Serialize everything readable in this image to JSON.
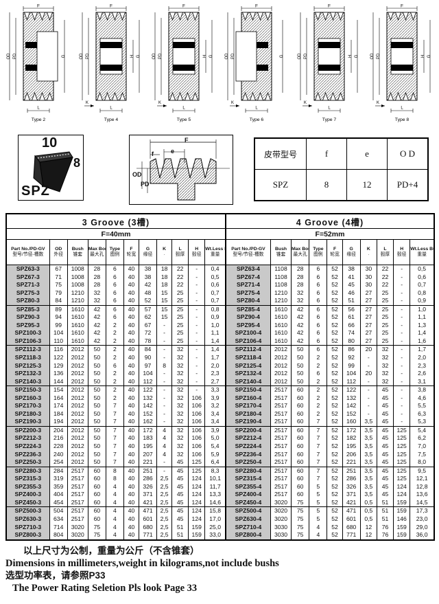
{
  "drawings": [
    {
      "caption": "Type 2",
      "top_dim": "F",
      "left_dims": [
        "OD",
        "PD"
      ],
      "right_dims": [
        "G"
      ],
      "bottom_dims": [
        "L"
      ],
      "hub": "right"
    },
    {
      "caption": "Type 4",
      "top_dim": "F",
      "left_dims": [
        "OD",
        "PD"
      ],
      "right_dims": [
        "H",
        "G"
      ],
      "bottom_dims": [
        "K",
        "L"
      ],
      "hub": "center"
    },
    {
      "caption": "Type 5",
      "top_dim": "F",
      "left_dims": [
        "OD",
        "PD"
      ],
      "right_dims": [
        "H",
        "G"
      ],
      "bottom_dims": [
        "K",
        "L"
      ],
      "hub": "center"
    },
    {
      "caption": "Type 6",
      "top_dim": "F",
      "left_dims": [
        "OD",
        "PD"
      ],
      "right_dims": [
        "G"
      ],
      "bottom_dims": [
        "K",
        "L"
      ],
      "hub": "left"
    },
    {
      "caption": "Type 7",
      "top_dim": "F",
      "left_dims": [
        "OD",
        "PD"
      ],
      "right_dims": [
        "H",
        "G"
      ],
      "bottom_dims": [
        "K",
        "L"
      ],
      "hub": "center"
    },
    {
      "caption": "Type 8",
      "top_dim": "F",
      "left_dims": [
        "OD",
        "PD"
      ],
      "right_dims": [
        "H",
        "G"
      ],
      "bottom_dims": [
        "K",
        "L"
      ],
      "hub": "center"
    }
  ],
  "belt_profile": {
    "top_width": "10",
    "height": "8",
    "name": "SPZ"
  },
  "groove_diagram": {
    "F": "F",
    "f": "f",
    "e": "e",
    "OD": "OD",
    "PD": "PD"
  },
  "spec_table": {
    "headers": [
      "皮带型号",
      "f",
      "e",
      "O D"
    ],
    "row": [
      "SPZ",
      "8",
      "12",
      "PD+4"
    ]
  },
  "main_table": {
    "group_breaks": [
      4,
      9,
      14,
      19,
      24,
      29
    ],
    "left": {
      "title": "3 Groove (3槽)",
      "subtitle": "F=40mm",
      "columns": [
        [
          "Part No./PD-GV",
          "型号/节径-槽数"
        ],
        [
          "OD",
          "外径"
        ],
        [
          "Bush",
          "锥套"
        ],
        [
          "Max Bore",
          "最大孔"
        ],
        [
          "Type",
          "图例"
        ],
        [
          "F",
          "轮宽"
        ],
        [
          "G",
          "缘径"
        ],
        [
          "K",
          "·"
        ],
        [
          "L",
          "毂厚"
        ],
        [
          "H",
          "毂径"
        ],
        [
          "Wt.Less Bush",
          "重量"
        ]
      ],
      "rows": [
        [
          "SPZ63-3",
          "67",
          "1008",
          "28",
          "6",
          "40",
          "38",
          "18",
          "22",
          "-",
          "0,4"
        ],
        [
          "SPZ67-3",
          "71",
          "1008",
          "28",
          "6",
          "40",
          "38",
          "18",
          "22",
          "-",
          "0,5"
        ],
        [
          "SPZ71-3",
          "75",
          "1008",
          "28",
          "6",
          "40",
          "42",
          "18",
          "22",
          "-",
          "0,6"
        ],
        [
          "SPZ75-3",
          "79",
          "1210",
          "32",
          "6",
          "40",
          "48",
          "15",
          "25",
          "-",
          "0,7"
        ],
        [
          "SPZ80-3",
          "84",
          "1210",
          "32",
          "6",
          "40",
          "52",
          "15",
          "25",
          "-",
          "0,7"
        ],
        [
          "SPZ85-3",
          "89",
          "1610",
          "42",
          "6",
          "40",
          "57",
          "15",
          "25",
          "-",
          "0,8"
        ],
        [
          "SPZ90-3",
          "94",
          "1610",
          "42",
          "6",
          "40",
          "62",
          "15",
          "25",
          "-",
          "0,9"
        ],
        [
          "SPZ95-3",
          "99",
          "1610",
          "42",
          "2",
          "40",
          "67",
          "-",
          "25",
          "-",
          "1,0"
        ],
        [
          "SPZ100-3",
          "104",
          "1610",
          "42",
          "2",
          "40",
          "72",
          "-",
          "25",
          "-",
          "1,1"
        ],
        [
          "SPZ106-3",
          "110",
          "1610",
          "42",
          "2",
          "40",
          "78",
          "-",
          "25",
          "-",
          "1,4"
        ],
        [
          "SPZ112-3",
          "116",
          "2012",
          "50",
          "2",
          "40",
          "84",
          "-",
          "32",
          "-",
          "1,4"
        ],
        [
          "SPZ118-3",
          "122",
          "2012",
          "50",
          "2",
          "40",
          "90",
          "-",
          "32",
          "-",
          "1,7"
        ],
        [
          "SPZ125-3",
          "129",
          "2012",
          "50",
          "6",
          "40",
          "97",
          "8",
          "32",
          "-",
          "2,0"
        ],
        [
          "SPZ132-3",
          "136",
          "2012",
          "50",
          "2",
          "40",
          "104",
          "-",
          "32",
          "-",
          "2,3"
        ],
        [
          "SPZ140-3",
          "144",
          "2012",
          "50",
          "2",
          "40",
          "112",
          "-",
          "32",
          "-",
          "2,7"
        ],
        [
          "SPZ150-3",
          "154",
          "2012",
          "50",
          "2",
          "40",
          "122",
          "-",
          "32",
          "-",
          "3,3"
        ],
        [
          "SPZ160-3",
          "164",
          "2012",
          "50",
          "2",
          "40",
          "132",
          "-",
          "32",
          "106",
          "3,9"
        ],
        [
          "SPZ170-3",
          "174",
          "2012",
          "50",
          "7",
          "40",
          "142",
          "-",
          "32",
          "106",
          "3,2"
        ],
        [
          "SPZ180-3",
          "184",
          "2012",
          "50",
          "7",
          "40",
          "152",
          "-",
          "32",
          "106",
          "3,4"
        ],
        [
          "SPZ190-3",
          "194",
          "2012",
          "50",
          "7",
          "40",
          "162",
          "-",
          "32",
          "106",
          "3,4"
        ],
        [
          "SPZ200-3",
          "204",
          "2012",
          "50",
          "7",
          "40",
          "172",
          "4",
          "32",
          "106",
          "3,9"
        ],
        [
          "SPZ212-3",
          "216",
          "2012",
          "50",
          "7",
          "40",
          "183",
          "4",
          "32",
          "106",
          "5,0"
        ],
        [
          "SPZ224-3",
          "228",
          "2012",
          "50",
          "7",
          "40",
          "195",
          "4",
          "32",
          "106",
          "5,4"
        ],
        [
          "SPZ236-3",
          "240",
          "2012",
          "50",
          "7",
          "40",
          "207",
          "4",
          "32",
          "106",
          "5,9"
        ],
        [
          "SPZ250-3",
          "254",
          "2012",
          "50",
          "7",
          "40",
          "221",
          "-",
          "45",
          "125",
          "6,4"
        ],
        [
          "SPZ280-3",
          "284",
          "2517",
          "60",
          "8",
          "40",
          "251",
          "-",
          "45",
          "125",
          "8,3"
        ],
        [
          "SPZ315-3",
          "319",
          "2517",
          "60",
          "8",
          "40",
          "286",
          "2,5",
          "45",
          "124",
          "10,1"
        ],
        [
          "SPZ355-3",
          "359",
          "2517",
          "60",
          "4",
          "40",
          "326",
          "2,5",
          "45",
          "124",
          "11,7"
        ],
        [
          "SPZ400-3",
          "404",
          "2517",
          "60",
          "4",
          "40",
          "371",
          "2,5",
          "45",
          "124",
          "13,3"
        ],
        [
          "SPZ450-3",
          "454",
          "2517",
          "60",
          "4",
          "40",
          "421",
          "2,5",
          "45",
          "124",
          "14,6"
        ],
        [
          "SPZ500-3",
          "504",
          "2517",
          "60",
          "4",
          "40",
          "471",
          "2,5",
          "45",
          "124",
          "15,8"
        ],
        [
          "SPZ630-3",
          "634",
          "2517",
          "60",
          "4",
          "40",
          "601",
          "2,5",
          "45",
          "124",
          "17,0"
        ],
        [
          "SPZ710-3",
          "714",
          "3020",
          "75",
          "4",
          "40",
          "680",
          "2,5",
          "51",
          "159",
          "25,0"
        ],
        [
          "SPZ800-3",
          "804",
          "3020",
          "75",
          "4",
          "40",
          "771",
          "2,5",
          "51",
          "159",
          "33,0"
        ]
      ]
    },
    "right": {
      "title": "4 Groove (4槽)",
      "subtitle": "F=52mm",
      "columns": [
        [
          "Part No./PD-GV",
          "型号/节径-槽数"
        ],
        [
          "Bush",
          "锥套"
        ],
        [
          "Max Bore",
          "最大孔"
        ],
        [
          "Type",
          "图例"
        ],
        [
          "F",
          "轮宽"
        ],
        [
          "G",
          "缘径"
        ],
        [
          "K",
          "·"
        ],
        [
          "L",
          "毂厚"
        ],
        [
          "H",
          "毂径"
        ],
        [
          "Wt.Less Bush",
          "重量"
        ]
      ],
      "rows": [
        [
          "SPZ63-4",
          "1108",
          "28",
          "6",
          "52",
          "38",
          "30",
          "22",
          "-",
          "0,5"
        ],
        [
          "SPZ67-4",
          "1108",
          "28",
          "6",
          "52",
          "41",
          "30",
          "22",
          "-",
          "0,6"
        ],
        [
          "SPZ71-4",
          "1108",
          "28",
          "6",
          "52",
          "45",
          "30",
          "22",
          "-",
          "0,7"
        ],
        [
          "SPZ75-4",
          "1210",
          "32",
          "6",
          "52",
          "46",
          "27",
          "25",
          "-",
          "0,8"
        ],
        [
          "SPZ80-4",
          "1210",
          "32",
          "6",
          "52",
          "51",
          "27",
          "25",
          "-",
          "0,9"
        ],
        [
          "SPZ85-4",
          "1610",
          "42",
          "6",
          "52",
          "56",
          "27",
          "25",
          "-",
          "1,0"
        ],
        [
          "SPZ90-4",
          "1610",
          "42",
          "6",
          "52",
          "61",
          "27",
          "25",
          "-",
          "1,1"
        ],
        [
          "SPZ95-4",
          "1610",
          "42",
          "6",
          "52",
          "66",
          "27",
          "25",
          "-",
          "1,3"
        ],
        [
          "SPZ100-4",
          "1610",
          "42",
          "6",
          "52",
          "74",
          "27",
          "25",
          "-",
          "1,4"
        ],
        [
          "SPZ106-4",
          "1610",
          "42",
          "6",
          "52",
          "80",
          "27",
          "25",
          "-",
          "1,6"
        ],
        [
          "SPZ112-4",
          "2012",
          "50",
          "6",
          "52",
          "86",
          "20",
          "32",
          "-",
          "1,7"
        ],
        [
          "SPZ118-4",
          "2012",
          "50",
          "2",
          "52",
          "92",
          "-",
          "32",
          "-",
          "2,0"
        ],
        [
          "SPZ125-4",
          "2012",
          "50",
          "2",
          "52",
          "99",
          "-",
          "32",
          "-",
          "2,3"
        ],
        [
          "SPZ132-4",
          "2012",
          "50",
          "6",
          "52",
          "104",
          "20",
          "32",
          "-",
          "2,6"
        ],
        [
          "SPZ140-4",
          "2012",
          "50",
          "2",
          "52",
          "112",
          "-",
          "32",
          "-",
          "3,1"
        ],
        [
          "SPZ150-4",
          "2517",
          "60",
          "2",
          "52",
          "122",
          "-",
          "45",
          "-",
          "3,8"
        ],
        [
          "SPZ160-4",
          "2517",
          "60",
          "2",
          "52",
          "132",
          "-",
          "45",
          "-",
          "4,6"
        ],
        [
          "SPZ170-4",
          "2517",
          "60",
          "2",
          "52",
          "142",
          "-",
          "45",
          "-",
          "5,5"
        ],
        [
          "SPZ180-4",
          "2517",
          "60",
          "2",
          "52",
          "152",
          "-",
          "45",
          "-",
          "6,3"
        ],
        [
          "SPZ190-4",
          "2517",
          "60",
          "7",
          "52",
          "160",
          "3,5",
          "45",
          "-",
          "5,3"
        ],
        [
          "SPZ200-4",
          "2517",
          "60",
          "7",
          "52",
          "172",
          "3,5",
          "45",
          "125",
          "5,4"
        ],
        [
          "SPZ212-4",
          "2517",
          "60",
          "7",
          "52",
          "182",
          "3,5",
          "45",
          "125",
          "6,2"
        ],
        [
          "SPZ224-4",
          "2517",
          "60",
          "7",
          "52",
          "195",
          "3,5",
          "45",
          "125",
          "7,0"
        ],
        [
          "SPZ236-4",
          "2517",
          "60",
          "7",
          "52",
          "206",
          "3,5",
          "45",
          "125",
          "7,5"
        ],
        [
          "SPZ250-4",
          "2517",
          "60",
          "7",
          "52",
          "221",
          "3,5",
          "45",
          "125",
          "8,0"
        ],
        [
          "SPZ280-4",
          "2517",
          "60",
          "7",
          "52",
          "251",
          "3,5",
          "45",
          "125",
          "9,5"
        ],
        [
          "SPZ315-4",
          "2517",
          "60",
          "7",
          "52",
          "286",
          "3,5",
          "45",
          "125",
          "12,1"
        ],
        [
          "SPZ355-4",
          "2517",
          "60",
          "5",
          "52",
          "326",
          "3,5",
          "45",
          "124",
          "12,8"
        ],
        [
          "SPZ400-4",
          "2517",
          "60",
          "5",
          "52",
          "371",
          "3,5",
          "45",
          "124",
          "13,6"
        ],
        [
          "SPZ450-4",
          "3020",
          "75",
          "5",
          "52",
          "421",
          "0,5",
          "51",
          "159",
          "14,5"
        ],
        [
          "SPZ500-4",
          "3020",
          "75",
          "5",
          "52",
          "471",
          "0,5",
          "51",
          "159",
          "17,3"
        ],
        [
          "SPZ630-4",
          "3020",
          "75",
          "5",
          "52",
          "601",
          "0,5",
          "51",
          "146",
          "23,0"
        ],
        [
          "SPZ710-4",
          "3030",
          "75",
          "4",
          "52",
          "680",
          "12",
          "76",
          "159",
          "29,0"
        ],
        [
          "SPZ800-4",
          "3030",
          "75",
          "4",
          "52",
          "771",
          "12",
          "76",
          "159",
          "36,0"
        ]
      ]
    }
  },
  "footer": {
    "lines": [
      "以上尺寸为公制，重量为公斤（不含锥套）",
      "Dimensions in millimeters,weight in kilograms,not include bushs",
      "选型功率表，请参照P33",
      "The Power Rating Seletion Pls look Page 33"
    ]
  },
  "colors": {
    "part_col_bg": "#c9c9c9",
    "border": "#000000",
    "ink": "#111111"
  }
}
